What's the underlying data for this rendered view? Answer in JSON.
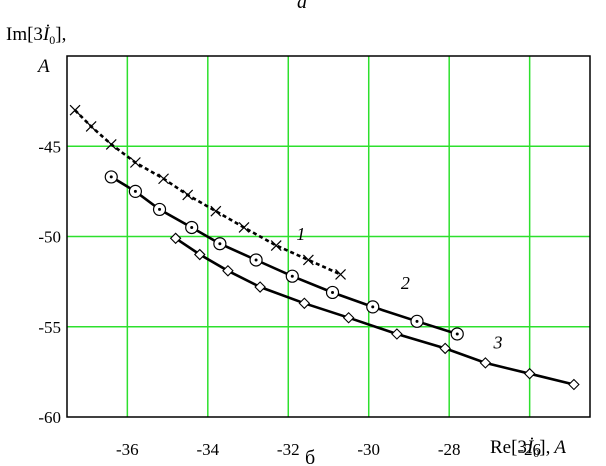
{
  "chart_data": {
    "type": "line",
    "top_caption": "a",
    "bottom_caption": "б",
    "ylabel": "Im[3İ₀],",
    "ylabel_unit": "A",
    "xlabel": "Re[3İ₀], A",
    "xlim": [
      -37.5,
      -24.5
    ],
    "ylim": [
      -60,
      -40
    ],
    "x_ticks": [
      -36,
      -34,
      -32,
      -30,
      -28,
      -26
    ],
    "y_ticks": [
      -45,
      -50,
      -55,
      -60
    ],
    "grid": true,
    "grid_x": [
      -36,
      -34,
      -32,
      -30,
      -28,
      -26
    ],
    "grid_y": [
      -45,
      -50,
      -55
    ],
    "series": [
      {
        "name": "1",
        "marker": "x",
        "line_style": "dashed",
        "points": [
          [
            -37.3,
            -43.0
          ],
          [
            -36.9,
            -43.9
          ],
          [
            -36.4,
            -44.9
          ],
          [
            -35.8,
            -45.9
          ],
          [
            -35.1,
            -46.8
          ],
          [
            -34.5,
            -47.7
          ],
          [
            -33.8,
            -48.6
          ],
          [
            -33.1,
            -49.5
          ],
          [
            -32.3,
            -50.5
          ],
          [
            -31.5,
            -51.3
          ],
          [
            -30.7,
            -52.1
          ]
        ]
      },
      {
        "name": "2",
        "marker": "circle",
        "line_style": "solid",
        "points": [
          [
            -36.4,
            -46.7
          ],
          [
            -35.8,
            -47.5
          ],
          [
            -35.2,
            -48.5
          ],
          [
            -34.4,
            -49.5
          ],
          [
            -33.7,
            -50.4
          ],
          [
            -32.8,
            -51.3
          ],
          [
            -31.9,
            -52.2
          ],
          [
            -30.9,
            -53.1
          ],
          [
            -29.9,
            -53.9
          ],
          [
            -28.8,
            -54.7
          ],
          [
            -27.8,
            -55.4
          ]
        ]
      },
      {
        "name": "3",
        "marker": "diamond",
        "line_style": "solid",
        "points": [
          [
            -34.8,
            -50.1
          ],
          [
            -34.2,
            -51.0
          ],
          [
            -33.5,
            -51.9
          ],
          [
            -32.7,
            -52.8
          ],
          [
            -31.6,
            -53.7
          ],
          [
            -30.5,
            -54.5
          ],
          [
            -29.3,
            -55.4
          ],
          [
            -28.1,
            -56.2
          ],
          [
            -27.1,
            -57.0
          ],
          [
            -26.0,
            -57.6
          ],
          [
            -24.9,
            -58.2
          ]
        ]
      }
    ]
  }
}
